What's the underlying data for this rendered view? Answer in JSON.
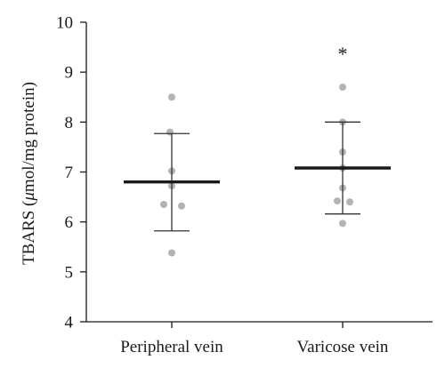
{
  "chart_data": {
    "type": "scatter",
    "ylabel_pre": "TBARS (",
    "ylabel_mu": "μ",
    "ylabel_post": "mol/mg protein)",
    "ylim": [
      4,
      10
    ],
    "yticks": [
      4,
      5,
      6,
      7,
      8,
      9,
      10
    ],
    "categories": [
      "Peripheral vein",
      "Varicose vein"
    ],
    "groups": [
      {
        "category": "Peripheral vein",
        "mean": 6.8,
        "sd_upper": 7.77,
        "sd_lower": 5.82,
        "points": [
          8.5,
          7.8,
          7.02,
          6.72,
          6.35,
          6.32,
          5.38
        ],
        "annotation": ""
      },
      {
        "category": "Varicose vein",
        "mean": 7.08,
        "sd_upper": 8.0,
        "sd_lower": 6.16,
        "points": [
          8.7,
          8.0,
          7.4,
          7.08,
          6.68,
          6.42,
          6.4,
          5.97
        ],
        "annotation": "*"
      }
    ],
    "grid": false,
    "legend": "none"
  }
}
